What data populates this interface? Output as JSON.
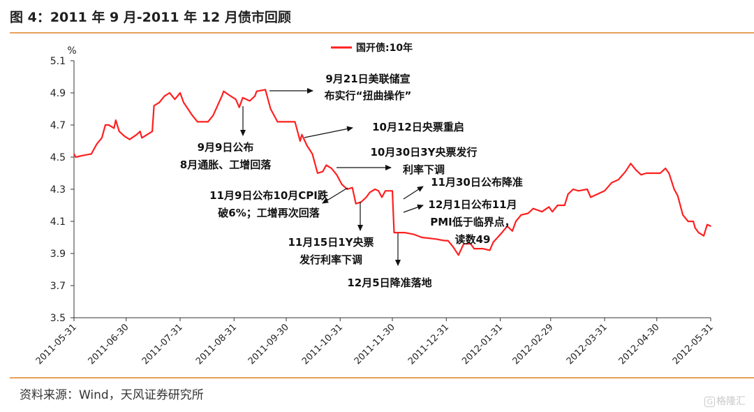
{
  "header": {
    "title": "图 4：2011 年 9 月-2011 年 12 月债市回顾"
  },
  "footer": {
    "source": "资料来源：Wind，天风证券研究所",
    "watermark": "格隆汇"
  },
  "colors": {
    "series": "#ff1f1f",
    "accent_rule": "#e6a15a",
    "axis": "#333333"
  },
  "chart_data": {
    "type": "line",
    "unit_label": "%",
    "ylim": [
      3.5,
      5.1
    ],
    "yticks": [
      "5.1",
      "4.9",
      "4.7",
      "4.5",
      "4.3",
      "4.1",
      "3.9",
      "3.7",
      "3.5"
    ],
    "xlim": [
      "2011-05-31",
      "2012-05-31"
    ],
    "xticks": [
      "2011-05-31",
      "2011-06-30",
      "2011-07-31",
      "2011-08-31",
      "2011-09-30",
      "2011-10-31",
      "2011-11-30",
      "2011-12-31",
      "2012-01-31",
      "2012-02-29",
      "2012-03-31",
      "2012-04-30",
      "2012-05-31"
    ],
    "grid": false,
    "legend_position": "top-center",
    "series": [
      {
        "name": "国开债:10年",
        "color": "#ff1f1f",
        "points": [
          [
            "2011-05-31",
            4.52
          ],
          [
            "2011-06-01",
            4.5
          ],
          [
            "2011-06-05",
            4.51
          ],
          [
            "2011-06-10",
            4.52
          ],
          [
            "2011-06-13",
            4.58
          ],
          [
            "2011-06-16",
            4.62
          ],
          [
            "2011-06-18",
            4.7
          ],
          [
            "2011-06-20",
            4.7
          ],
          [
            "2011-06-23",
            4.68
          ],
          [
            "2011-06-24",
            4.73
          ],
          [
            "2011-06-26",
            4.66
          ],
          [
            "2011-06-29",
            4.63
          ],
          [
            "2011-07-02",
            4.61
          ],
          [
            "2011-07-06",
            4.64
          ],
          [
            "2011-07-08",
            4.66
          ],
          [
            "2011-07-09",
            4.62
          ],
          [
            "2011-07-12",
            4.64
          ],
          [
            "2011-07-15",
            4.66
          ],
          [
            "2011-07-16",
            4.82
          ],
          [
            "2011-07-19",
            4.84
          ],
          [
            "2011-07-22",
            4.88
          ],
          [
            "2011-07-25",
            4.9
          ],
          [
            "2011-07-28",
            4.86
          ],
          [
            "2011-07-31",
            4.9
          ],
          [
            "2011-08-02",
            4.84
          ],
          [
            "2011-08-07",
            4.76
          ],
          [
            "2011-08-10",
            4.72
          ],
          [
            "2011-08-16",
            4.72
          ],
          [
            "2011-08-19",
            4.76
          ],
          [
            "2011-08-24",
            4.88
          ],
          [
            "2011-08-25",
            4.91
          ],
          [
            "2011-08-29",
            4.88
          ],
          [
            "2011-09-01",
            4.86
          ],
          [
            "2011-09-03",
            4.81
          ],
          [
            "2011-09-05",
            4.87
          ],
          [
            "2011-09-09",
            4.85
          ],
          [
            "2011-09-12",
            4.88
          ],
          [
            "2011-09-13",
            4.91
          ],
          [
            "2011-09-18",
            4.92
          ],
          [
            "2011-09-21",
            4.8
          ],
          [
            "2011-09-25",
            4.72
          ],
          [
            "2011-09-28",
            4.72
          ],
          [
            "2011-10-05",
            4.72
          ],
          [
            "2011-10-08",
            4.6
          ],
          [
            "2011-10-09",
            4.64
          ],
          [
            "2011-10-12",
            4.57
          ],
          [
            "2011-10-15",
            4.52
          ],
          [
            "2011-10-18",
            4.4
          ],
          [
            "2011-10-21",
            4.41
          ],
          [
            "2011-10-23",
            4.45
          ],
          [
            "2011-10-26",
            4.43
          ],
          [
            "2011-10-29",
            4.39
          ],
          [
            "2011-11-01",
            4.33
          ],
          [
            "2011-11-04",
            4.3
          ],
          [
            "2011-11-07",
            4.31
          ],
          [
            "2011-11-09",
            4.21
          ],
          [
            "2011-11-12",
            4.22
          ],
          [
            "2011-11-15",
            4.25
          ],
          [
            "2011-11-17",
            4.28
          ],
          [
            "2011-11-20",
            4.3
          ],
          [
            "2011-11-22",
            4.29
          ],
          [
            "2011-11-24",
            4.25
          ],
          [
            "2011-11-26",
            4.29
          ],
          [
            "2011-11-30",
            4.29
          ],
          [
            "2011-12-01",
            4.03
          ],
          [
            "2011-12-07",
            4.03
          ],
          [
            "2011-12-12",
            4.02
          ],
          [
            "2011-12-17",
            4.0
          ],
          [
            "2011-12-25",
            3.99
          ],
          [
            "2011-12-30",
            3.98
          ],
          [
            "2012-01-01",
            3.98
          ],
          [
            "2012-01-04",
            3.94
          ],
          [
            "2012-01-07",
            3.89
          ],
          [
            "2012-01-10",
            3.96
          ],
          [
            "2012-01-14",
            3.96
          ],
          [
            "2012-01-16",
            3.93
          ],
          [
            "2012-01-21",
            3.93
          ],
          [
            "2012-01-25",
            3.92
          ],
          [
            "2012-01-27",
            3.97
          ],
          [
            "2012-02-01",
            4.03
          ],
          [
            "2012-02-04",
            4.07
          ],
          [
            "2012-02-07",
            4.04
          ],
          [
            "2012-02-09",
            4.1
          ],
          [
            "2012-02-12",
            4.14
          ],
          [
            "2012-02-16",
            4.15
          ],
          [
            "2012-02-19",
            4.18
          ],
          [
            "2012-02-24",
            4.16
          ],
          [
            "2012-02-28",
            4.19
          ],
          [
            "2012-03-01",
            4.16
          ],
          [
            "2012-03-04",
            4.2
          ],
          [
            "2012-03-08",
            4.2
          ],
          [
            "2012-03-10",
            4.27
          ],
          [
            "2012-03-13",
            4.3
          ],
          [
            "2012-03-16",
            4.29
          ],
          [
            "2012-03-21",
            4.3
          ],
          [
            "2012-03-23",
            4.25
          ],
          [
            "2012-03-27",
            4.27
          ],
          [
            "2012-03-31",
            4.29
          ],
          [
            "2012-04-04",
            4.34
          ],
          [
            "2012-04-08",
            4.36
          ],
          [
            "2012-04-12",
            4.41
          ],
          [
            "2012-04-15",
            4.46
          ],
          [
            "2012-04-18",
            4.42
          ],
          [
            "2012-04-21",
            4.39
          ],
          [
            "2012-04-24",
            4.4
          ],
          [
            "2012-05-02",
            4.4
          ],
          [
            "2012-05-05",
            4.43
          ],
          [
            "2012-05-07",
            4.4
          ],
          [
            "2012-05-10",
            4.3
          ],
          [
            "2012-05-12",
            4.26
          ],
          [
            "2012-05-15",
            4.14
          ],
          [
            "2012-05-18",
            4.1
          ],
          [
            "2012-05-21",
            4.1
          ],
          [
            "2012-05-22",
            4.06
          ],
          [
            "2012-05-24",
            4.03
          ],
          [
            "2012-05-27",
            4.01
          ],
          [
            "2012-05-29",
            4.08
          ],
          [
            "2012-05-31",
            4.07
          ]
        ]
      }
    ],
    "annotations": [
      {
        "lines": [
          "9月21日美联储宣",
          "布实行“扭曲操作”"
        ]
      },
      {
        "lines": [
          "9月9日公布",
          "8月通胀、工增回落"
        ]
      },
      {
        "lines": [
          "10月12日央票重启"
        ]
      },
      {
        "lines": [
          "10月30日3Y央票发行",
          "利率下调"
        ]
      },
      {
        "lines": [
          "11月9日公布10月CPI跌",
          "破6%；工增再次回落"
        ]
      },
      {
        "lines": [
          "11月30日公布降准"
        ]
      },
      {
        "lines": [
          "12月1日公布11月",
          "PMI低于临界点，",
          "读数49"
        ]
      },
      {
        "lines": [
          "11月15日1Y央票",
          "发行利率下调"
        ]
      },
      {
        "lines": [
          "12月5日降准落地"
        ]
      }
    ]
  }
}
